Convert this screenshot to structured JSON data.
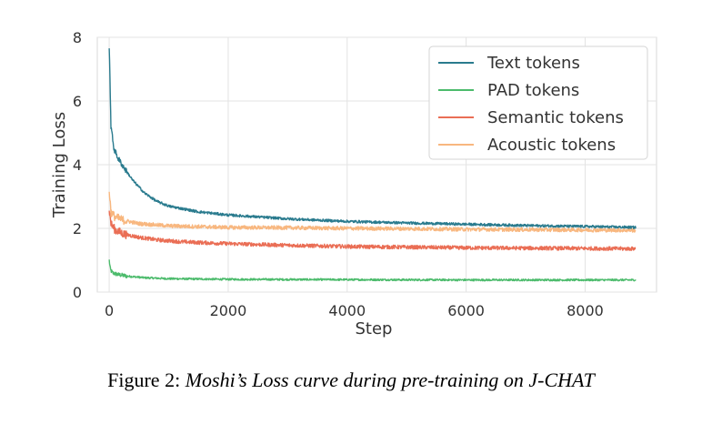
{
  "chart_data": {
    "type": "line",
    "xlabel": "Step",
    "ylabel": "Training Loss",
    "xlim": [
      -200,
      9200
    ],
    "ylim": [
      0,
      8
    ],
    "xticks": [
      0,
      2000,
      4000,
      6000,
      8000
    ],
    "yticks": [
      0,
      2,
      4,
      6,
      8
    ],
    "grid": true,
    "legend_position": "top-right",
    "series": [
      {
        "name": "Text tokens",
        "color": "#2a7b8e",
        "noise": 0.04,
        "x": [
          0,
          30,
          80,
          150,
          250,
          400,
          600,
          800,
          1000,
          1500,
          2000,
          3000,
          4000,
          5000,
          6000,
          7000,
          8000,
          8850
        ],
        "y": [
          7.7,
          5.2,
          4.5,
          4.2,
          3.9,
          3.5,
          3.1,
          2.85,
          2.7,
          2.52,
          2.42,
          2.3,
          2.22,
          2.17,
          2.13,
          2.09,
          2.06,
          2.03
        ]
      },
      {
        "name": "PAD tokens",
        "color": "#4cbb6c",
        "noise": 0.03,
        "x": [
          0,
          20,
          60,
          150,
          300,
          600,
          1000,
          2000,
          4000,
          6000,
          8850
        ],
        "y": [
          1.0,
          0.7,
          0.6,
          0.55,
          0.5,
          0.45,
          0.42,
          0.4,
          0.39,
          0.38,
          0.38
        ]
      },
      {
        "name": "Semantic tokens",
        "color": "#ea6e55",
        "noise": 0.06,
        "x": [
          0,
          30,
          100,
          250,
          500,
          800,
          1200,
          2000,
          3000,
          4000,
          5000,
          6000,
          7000,
          8000,
          8850
        ],
        "y": [
          2.6,
          2.15,
          1.95,
          1.82,
          1.72,
          1.64,
          1.58,
          1.52,
          1.47,
          1.43,
          1.41,
          1.39,
          1.38,
          1.37,
          1.36
        ]
      },
      {
        "name": "Acoustic tokens",
        "color": "#f8b77f",
        "noise": 0.06,
        "x": [
          0,
          30,
          100,
          250,
          500,
          1000,
          2000,
          3000,
          4000,
          5000,
          6000,
          7000,
          8000,
          8850
        ],
        "y": [
          3.2,
          2.5,
          2.35,
          2.25,
          2.15,
          2.08,
          2.03,
          2.02,
          2.0,
          1.99,
          1.97,
          1.96,
          1.95,
          1.94
        ]
      }
    ]
  },
  "caption": {
    "label": "Figure 2:",
    "title": "Moshi’s Loss curve during pre-training on J-CHAT"
  }
}
